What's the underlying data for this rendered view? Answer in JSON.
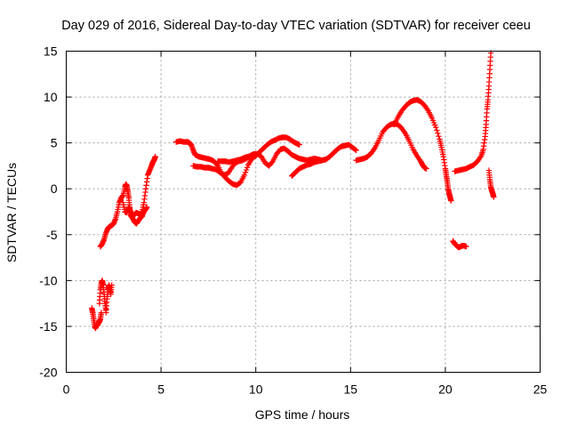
{
  "chart_data": {
    "type": "scatter",
    "title": "Day 029 of 2016, Sidereal Day-to-day VTEC variation (SDTVAR) for receiver ceeu",
    "xlabel": "GPS time / hours",
    "ylabel": "SDTVAR / TECUs",
    "xlim": [
      0,
      25
    ],
    "ylim": [
      -20,
      15
    ],
    "x_ticks": [
      0,
      5,
      10,
      15,
      20,
      25
    ],
    "y_ticks": [
      -20,
      -15,
      -10,
      -5,
      0,
      5,
      10,
      15
    ],
    "x_tick_labels": [
      "0",
      "5",
      "10",
      "15",
      "20",
      "25"
    ],
    "y_tick_labels": [
      "-20",
      "-15",
      "-10",
      "-5",
      "0",
      "5",
      "10",
      "15"
    ],
    "grid": true,
    "marker": "+",
    "color": "#ff0000",
    "segments": [
      {
        "name": "seg1a",
        "x": [
          1.35,
          1.4,
          1.45,
          1.5,
          1.55,
          1.6,
          1.65,
          1.7,
          1.75,
          1.8,
          1.85
        ],
        "y": [
          -13.0,
          -13.5,
          -14.2,
          -15.0,
          -15.2,
          -14.8,
          -14.9,
          -14.6,
          -14.5,
          -14.2,
          -13.5
        ]
      },
      {
        "name": "seg1b",
        "x": [
          1.75,
          1.8,
          1.85,
          1.9,
          1.95,
          2.0,
          2.05,
          2.1,
          2.15,
          2.2,
          2.25,
          2.3,
          2.35,
          2.4
        ],
        "y": [
          -12.5,
          -11.0,
          -10.3,
          -10.0,
          -10.5,
          -11.5,
          -12.5,
          -13.5,
          -12.0,
          -11.0,
          -10.5,
          -10.8,
          -11.5,
          -10.5
        ]
      },
      {
        "name": "seg2",
        "x": [
          1.8,
          1.9,
          2.0,
          2.1,
          2.2,
          2.3,
          2.4,
          2.5,
          2.6,
          2.7,
          2.8,
          2.9,
          3.0,
          3.1,
          3.15,
          3.2,
          3.25,
          3.3,
          3.35,
          3.4,
          3.45,
          3.5,
          3.6,
          3.7,
          3.8,
          3.9,
          4.0,
          4.1,
          4.2,
          4.3,
          4.4,
          4.5,
          4.55,
          4.6,
          4.65,
          4.7
        ],
        "y": [
          -6.3,
          -6.0,
          -5.5,
          -4.8,
          -4.3,
          -4.1,
          -4.0,
          -3.8,
          -3.3,
          -2.5,
          -1.5,
          -1.0,
          -0.7,
          0.2,
          0.5,
          0.3,
          -0.3,
          -1.0,
          -2.0,
          -2.8,
          -3.1,
          -3.0,
          -2.8,
          -2.6,
          -2.7,
          -2.8,
          -2.5,
          -1.5,
          0.0,
          1.5,
          2.0,
          2.5,
          2.8,
          3.0,
          3.2,
          3.5
        ]
      },
      {
        "name": "seg3",
        "x": [
          3.0,
          3.1,
          3.2,
          3.3,
          3.4,
          3.5,
          3.6,
          3.7,
          3.8,
          3.9,
          4.0,
          4.1,
          4.2,
          4.25
        ],
        "y": [
          -1.5,
          -2.5,
          -2.6,
          -2.0,
          -2.5,
          -3.2,
          -3.6,
          -3.8,
          -3.5,
          -3.2,
          -3.0,
          -2.5,
          -2.2,
          -2.0
        ]
      },
      {
        "name": "seg4",
        "x": [
          5.8,
          6.0,
          6.2,
          6.4,
          6.5,
          6.6,
          6.7,
          6.8,
          7.0,
          7.2,
          7.4,
          7.6,
          7.8,
          8.0,
          8.2,
          8.4,
          8.6,
          8.8,
          9.0,
          9.2,
          9.4,
          9.6,
          9.8,
          10.0,
          10.2,
          10.4,
          10.6,
          10.8,
          11.0,
          11.2,
          11.4,
          11.6,
          11.8,
          12.0,
          12.2,
          12.3
        ],
        "y": [
          5.1,
          5.2,
          5.1,
          5.1,
          5.0,
          4.8,
          4.2,
          3.7,
          3.5,
          3.4,
          3.3,
          3.2,
          3.0,
          2.5,
          1.7,
          1.2,
          0.8,
          0.5,
          0.4,
          0.7,
          1.5,
          2.6,
          3.3,
          3.6,
          4.0,
          4.4,
          4.8,
          5.1,
          5.3,
          5.5,
          5.6,
          5.6,
          5.4,
          5.1,
          4.9,
          4.8
        ]
      },
      {
        "name": "seg5",
        "x": [
          6.7,
          6.9,
          7.1,
          7.3,
          7.5,
          7.7,
          7.9,
          8.1,
          8.3,
          8.5,
          8.7,
          8.9,
          9.1,
          9.3,
          9.5,
          9.7,
          9.9,
          10.1,
          10.3,
          10.5,
          10.7,
          10.9,
          11.1,
          11.3,
          11.5,
          11.7,
          11.9,
          12.1,
          12.3,
          12.5,
          12.7,
          12.9,
          13.1,
          13.3,
          13.5,
          13.7,
          13.9,
          14.1,
          14.3,
          14.5,
          14.7,
          14.9,
          15.1,
          15.3
        ],
        "y": [
          2.5,
          2.4,
          2.4,
          2.3,
          2.3,
          2.2,
          2.1,
          1.8,
          1.5,
          1.6,
          2.2,
          2.8,
          3.0,
          3.1,
          3.3,
          3.6,
          3.8,
          3.8,
          3.5,
          2.8,
          2.5,
          3.0,
          3.8,
          4.3,
          4.4,
          4.1,
          3.7,
          3.5,
          3.3,
          3.2,
          3.1,
          3.2,
          3.3,
          3.2,
          3.1,
          3.2,
          3.5,
          3.9,
          4.3,
          4.6,
          4.7,
          4.8,
          4.5,
          4.2
        ]
      },
      {
        "name": "seg6",
        "x": [
          8.0,
          8.2,
          8.4,
          8.6,
          8.8,
          9.0,
          9.2,
          9.4,
          9.6,
          9.8,
          10.0
        ],
        "y": [
          3.0,
          3.0,
          3.0,
          2.9,
          3.0,
          3.1,
          3.2,
          3.4,
          3.5,
          3.5,
          3.6
        ]
      },
      {
        "name": "seg7",
        "x": [
          11.9,
          12.1,
          12.3,
          12.5,
          12.7,
          12.9,
          13.1,
          13.3,
          13.5,
          13.7
        ],
        "y": [
          1.4,
          1.8,
          2.2,
          2.4,
          2.6,
          2.7,
          2.9,
          3.0,
          3.1,
          3.2
        ]
      },
      {
        "name": "seg8",
        "x": [
          15.3,
          15.5,
          15.7,
          15.9,
          16.1,
          16.3,
          16.5,
          16.7,
          16.9,
          17.1,
          17.3,
          17.5,
          17.7,
          17.9,
          18.1,
          18.3,
          18.5,
          18.7,
          18.8,
          18.9,
          19.0
        ],
        "y": [
          3.1,
          3.2,
          3.3,
          3.5,
          3.9,
          4.5,
          5.3,
          6.2,
          6.7,
          7.0,
          7.1,
          7.0,
          6.6,
          6.0,
          5.2,
          4.3,
          3.6,
          3.0,
          2.6,
          2.3,
          2.2
        ]
      },
      {
        "name": "seg9",
        "x": [
          17.3,
          17.5,
          17.7,
          17.9,
          18.1,
          18.3,
          18.5,
          18.7,
          18.9,
          19.1,
          19.3,
          19.5,
          19.7,
          19.8,
          19.9,
          20.0,
          20.05,
          20.1,
          20.15,
          20.2,
          20.25,
          20.3
        ],
        "y": [
          7.0,
          7.8,
          8.5,
          9.0,
          9.4,
          9.6,
          9.7,
          9.5,
          9.1,
          8.5,
          7.7,
          6.7,
          5.4,
          4.5,
          3.5,
          2.2,
          1.5,
          0.8,
          0.0,
          -0.5,
          -0.9,
          -1.3
        ]
      },
      {
        "name": "seg10",
        "x": [
          20.4,
          20.5,
          20.6,
          20.7,
          20.8,
          20.9,
          21.0,
          21.1
        ],
        "y": [
          -5.7,
          -6.0,
          -6.2,
          -6.4,
          -6.3,
          -6.2,
          -6.2,
          -6.3
        ]
      },
      {
        "name": "seg11",
        "x": [
          20.5,
          20.7,
          20.9,
          21.1,
          21.3,
          21.5,
          21.7,
          21.9,
          22.0,
          22.1,
          22.15,
          22.2,
          22.25,
          22.3,
          22.35,
          22.4
        ],
        "y": [
          1.9,
          2.0,
          2.1,
          2.2,
          2.4,
          2.6,
          3.0,
          3.6,
          4.3,
          5.7,
          7.0,
          8.7,
          9.7,
          11.2,
          13.0,
          14.8
        ]
      },
      {
        "name": "seg12",
        "x": [
          22.3,
          22.35,
          22.4,
          22.45,
          22.5,
          22.55
        ],
        "y": [
          2.0,
          1.0,
          0.2,
          -0.2,
          -0.5,
          -0.9
        ]
      }
    ]
  }
}
